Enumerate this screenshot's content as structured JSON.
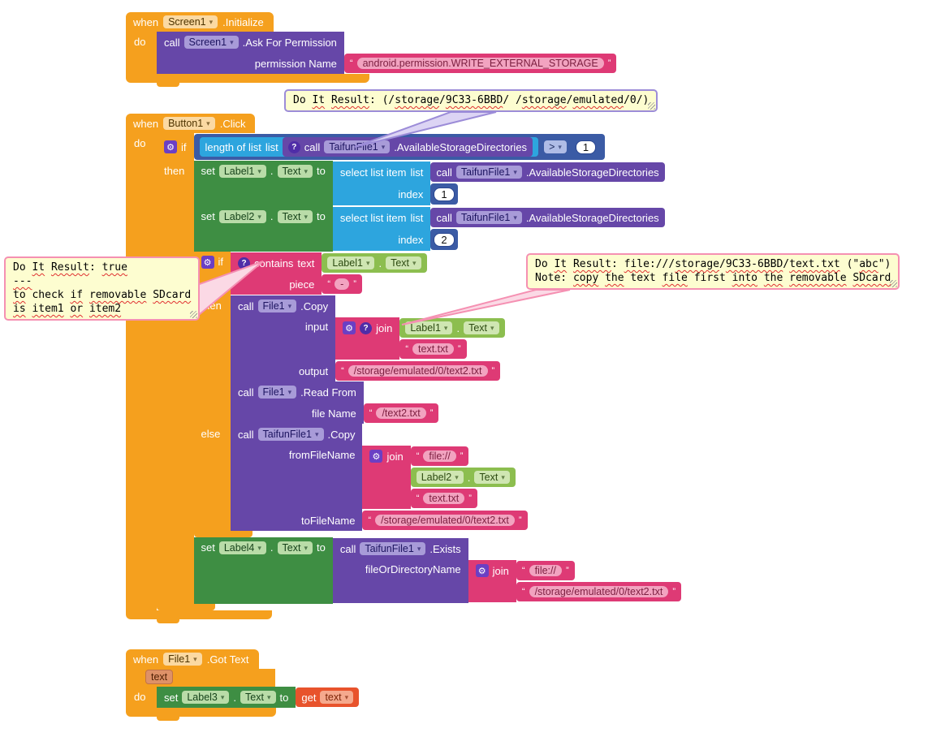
{
  "colors": {
    "event_orange": "#F5A01E",
    "method_purple": "#6647A8",
    "setter_green": "#3E8E43",
    "getter_green": "#8CBE4F",
    "list_cyan": "#2DA5DE",
    "math_blue": "#3B5BA5",
    "text_pink": "#DE3A75",
    "variable_orange": "#E8532C",
    "comment_yellow": "#FDFDD0",
    "comment_border_purple": "#9C8CD8",
    "comment_border_pink": "#F590B2"
  },
  "icons": {
    "gear": "⚙",
    "question": "?",
    "chevron": "▾"
  },
  "kw": {
    "when": "when",
    "do": "do",
    "call": "call",
    "set": "set",
    "to": "to",
    "if": "if",
    "then": "then",
    "else": "else",
    "join": "join",
    "get": "get",
    "index": "index",
    "list": "list",
    "piece": "piece",
    "contains": "contains",
    "text": "text",
    "dot": ".",
    "q1": "“",
    "q2": "”"
  },
  "g1": {
    "component": "Screen1",
    "event": ".Initialize",
    "ask": {
      "component": "Screen1",
      "method": ".Ask For Permission",
      "param": "permission Name",
      "value": "android.permission.WRITE_EXTERNAL_STORAGE"
    }
  },
  "g2": {
    "component": "Button1",
    "event": ".Click",
    "cond": {
      "length": "length of list",
      "component": "TaifunFile1",
      "method": ".AvailableStorageDirectories",
      "op": ">",
      "value": "1"
    },
    "set1": {
      "component": "Label1",
      "prop": "Text",
      "select": "select list item",
      "call_component": "TaifunFile1",
      "call_method": ".AvailableStorageDirectories",
      "index": "1"
    },
    "set2": {
      "component": "Label2",
      "prop": "Text",
      "select": "select list item",
      "call_component": "TaifunFile1",
      "call_method": ".AvailableStorageDirectories",
      "index": "2"
    },
    "if2": {
      "getter_component": "Label1",
      "getter_prop": "Text",
      "piece": "-"
    },
    "copy1": {
      "component": "File1",
      "method": ".Copy",
      "input": "input",
      "arg_component": "Label1",
      "arg_prop": "Text",
      "arg_str": "text.txt",
      "output": "output",
      "output_value": "/storage/emulated/0/text2.txt"
    },
    "read": {
      "component": "File1",
      "method": ".Read From",
      "param": "file Name",
      "value": "/text2.txt"
    },
    "copy2": {
      "component": "TaifunFile1",
      "method": ".Copy",
      "from": "fromFileName",
      "s1": "file://",
      "arg_component": "Label2",
      "arg_prop": "Text",
      "s2": "text.txt",
      "to": "toFileName",
      "to_value": "/storage/emulated/0/text2.txt"
    },
    "set4": {
      "component": "Label4",
      "prop": "Text",
      "call_component": "TaifunFile1",
      "call_method": ".Exists",
      "param": "fileOrDirectoryName",
      "s1": "file://",
      "s2": "/storage/emulated/0/text2.txt"
    }
  },
  "g3": {
    "component": "File1",
    "event": ".Got Text",
    "param": "text",
    "set3": {
      "component": "Label3",
      "prop": "Text",
      "get": "text"
    }
  },
  "comments": {
    "c1": {
      "lines": [
        [
          {
            "t": "Do ",
            "u": 0
          },
          {
            "t": "It",
            "u": 1
          },
          {
            "t": " ",
            "u": 0
          },
          {
            "t": "Result",
            "u": 1
          },
          {
            "t": ": (/",
            "u": 0
          },
          {
            "t": "storage",
            "u": 1
          },
          {
            "t": "/",
            "u": 0
          },
          {
            "t": "9C33-6BBD",
            "u": 1
          },
          {
            "t": "/ /",
            "u": 0
          },
          {
            "t": "storage",
            "u": 1
          },
          {
            "t": "/",
            "u": 0
          },
          {
            "t": "emulated",
            "u": 1
          },
          {
            "t": "/0/)",
            "u": 0
          }
        ]
      ]
    },
    "c2": {
      "lines": [
        [
          {
            "t": "Do ",
            "u": 0
          },
          {
            "t": "It",
            "u": 1
          },
          {
            "t": " ",
            "u": 0
          },
          {
            "t": "Result",
            "u": 1
          },
          {
            "t": ": ",
            "u": 0
          },
          {
            "t": "true",
            "u": 1
          }
        ],
        [
          {
            "t": "---",
            "u": 1
          }
        ],
        [
          {
            "t": "to",
            "u": 1
          },
          {
            "t": " check ",
            "u": 0
          },
          {
            "t": "if",
            "u": 1
          },
          {
            "t": " ",
            "u": 0
          },
          {
            "t": "removable",
            "u": 1
          },
          {
            "t": " ",
            "u": 0
          },
          {
            "t": "SDcard",
            "u": 1
          }
        ],
        [
          {
            "t": "is",
            "u": 1
          },
          {
            "t": " ",
            "u": 0
          },
          {
            "t": "item1",
            "u": 1
          },
          {
            "t": " ",
            "u": 0
          },
          {
            "t": "or",
            "u": 1
          },
          {
            "t": " ",
            "u": 0
          },
          {
            "t": "item2",
            "u": 1
          }
        ]
      ]
    },
    "c3": {
      "lines": [
        [
          {
            "t": "Do ",
            "u": 0
          },
          {
            "t": "It",
            "u": 1
          },
          {
            "t": " ",
            "u": 0
          },
          {
            "t": "Result",
            "u": 1
          },
          {
            "t": ": ",
            "u": 0
          },
          {
            "t": "file",
            "u": 1
          },
          {
            "t": ":///",
            "u": 0
          },
          {
            "t": "storage",
            "u": 1
          },
          {
            "t": "/",
            "u": 0
          },
          {
            "t": "9C33-6BBD",
            "u": 1
          },
          {
            "t": "/",
            "u": 0
          },
          {
            "t": "text.txt",
            "u": 1
          },
          {
            "t": " (\"",
            "u": 0
          },
          {
            "t": "abc",
            "u": 1
          },
          {
            "t": "\")",
            "u": 0
          }
        ],
        [
          {
            "t": "Note: ",
            "u": 0
          },
          {
            "t": "copy",
            "u": 1
          },
          {
            "t": " ",
            "u": 0
          },
          {
            "t": "the",
            "u": 1
          },
          {
            "t": " text ",
            "u": 0
          },
          {
            "t": "file",
            "u": 1
          },
          {
            "t": " first ",
            "u": 0
          },
          {
            "t": "into",
            "u": 1
          },
          {
            "t": " ",
            "u": 0
          },
          {
            "t": "the",
            "u": 1
          },
          {
            "t": " ",
            "u": 0
          },
          {
            "t": "removable",
            "u": 1
          },
          {
            "t": " ",
            "u": 0
          },
          {
            "t": "SDcard",
            "u": 1
          }
        ]
      ]
    }
  }
}
